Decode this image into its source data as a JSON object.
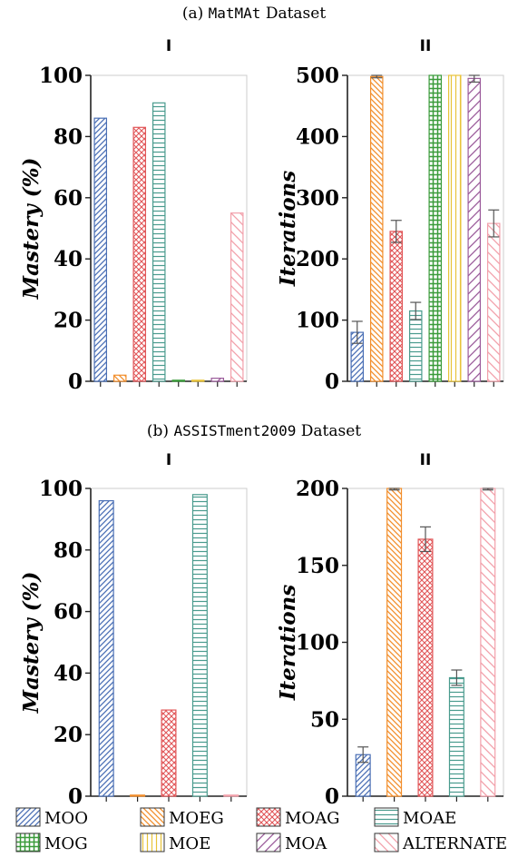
{
  "section_titles": [
    {
      "prefix": "(a) ",
      "name": "MatMAt",
      "suffix": " Dataset"
    },
    {
      "prefix": "(b) ",
      "name": "ASSISTment2009",
      "suffix": " Dataset"
    }
  ],
  "colors": {
    "MOO": "#4a6fb5",
    "MOEG": "#f28e2b",
    "MOAG": "#e15759",
    "MOAE": "#4a9b8e",
    "MOG": "#3a9b3a",
    "MOE": "#e8c33a",
    "MOA": "#9a5a9a",
    "ALTERNATE": "#f2a0aa"
  },
  "legend": {
    "entries": [
      {
        "label": "MOO",
        "pattern": "MOO"
      },
      {
        "label": "MOEG",
        "pattern": "MOEG"
      },
      {
        "label": "MOAG",
        "pattern": "MOAG"
      },
      {
        "label": "MOAE",
        "pattern": "MOAE"
      },
      {
        "label": "MOG",
        "pattern": "MOG"
      },
      {
        "label": "MOE",
        "pattern": "MOE"
      },
      {
        "label": "MOA",
        "pattern": "MOA"
      },
      {
        "label": "ALTERNATE",
        "pattern": "ALTERNATE"
      }
    ]
  },
  "chart_data": [
    {
      "type": "bar",
      "panel": "I",
      "dataset": "MatMAt",
      "ylabel": "Mastery (%)",
      "ylim": [
        0,
        100
      ],
      "yticks": [
        0,
        20,
        40,
        60,
        80,
        100
      ],
      "categories": [
        "MOO",
        "MOEG",
        "MOAG",
        "MOAE",
        "MOG",
        "MOE",
        "MOA",
        "ALTERNATE"
      ],
      "values": [
        86,
        2,
        83,
        91,
        0,
        0,
        1,
        55
      ],
      "errors": [
        null,
        null,
        null,
        null,
        null,
        null,
        null,
        null
      ]
    },
    {
      "type": "bar",
      "panel": "II",
      "dataset": "MatMAt",
      "ylabel": "Iterations",
      "ylim": [
        0,
        500
      ],
      "yticks": [
        0,
        100,
        200,
        300,
        400,
        500
      ],
      "categories": [
        "MOO",
        "MOEG",
        "MOAG",
        "MOAE",
        "MOG",
        "MOE",
        "MOA",
        "ALTERNATE"
      ],
      "values": [
        80,
        498,
        245,
        115,
        500,
        500,
        495,
        258
      ],
      "errors": [
        18,
        2,
        18,
        14,
        null,
        null,
        6,
        22
      ]
    },
    {
      "type": "bar",
      "panel": "I",
      "dataset": "ASSISTment2009",
      "ylabel": "Mastery (%)",
      "ylim": [
        0,
        100
      ],
      "yticks": [
        0,
        20,
        40,
        60,
        80,
        100
      ],
      "categories": [
        "MOO",
        "MOEG",
        "MOAG",
        "MOAE",
        "ALTERNATE"
      ],
      "values": [
        96,
        0,
        28,
        98,
        0
      ],
      "errors": [
        null,
        null,
        null,
        null,
        null
      ]
    },
    {
      "type": "bar",
      "panel": "II",
      "dataset": "ASSISTment2009",
      "ylabel": "Iterations",
      "ylim": [
        0,
        200
      ],
      "yticks": [
        0,
        50,
        100,
        150,
        200
      ],
      "categories": [
        "MOO",
        "MOEG",
        "MOAG",
        "MOAE",
        "ALTERNATE"
      ],
      "values": [
        27,
        200,
        167,
        77,
        200
      ],
      "errors": [
        5,
        1,
        8,
        5,
        1
      ]
    }
  ]
}
